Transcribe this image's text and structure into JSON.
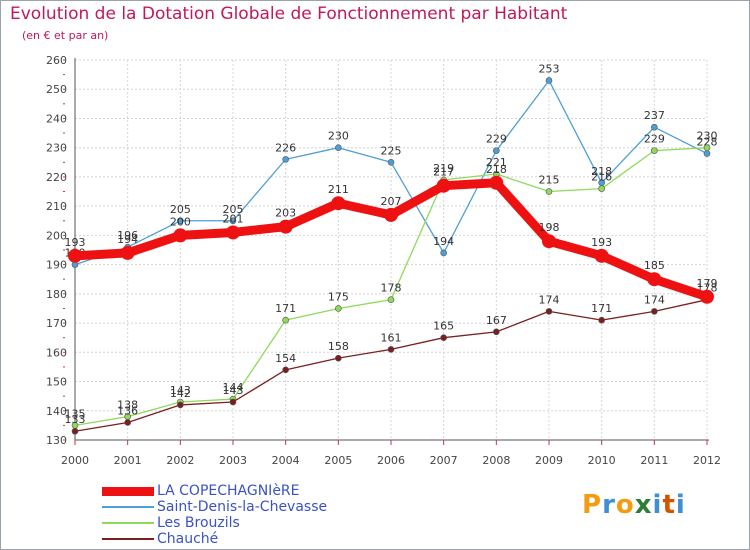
{
  "header": {
    "title": "Evolution de la Dotation Globale de Fonctionnement par Habitant",
    "subtitle": "(en € et par an)"
  },
  "logo": {
    "text": "Proxiti",
    "colors": [
      "#f39c12",
      "#3f8fd6",
      "#f39c12",
      "#2e7d32",
      "#3f8fd6",
      "#d35400",
      "#3f8fd6"
    ]
  },
  "chart_data": {
    "type": "line",
    "title": "Evolution de la Dotation Globale de Fonctionnement par Habitant",
    "subtitle": "(en € et par an)",
    "xlabel": "",
    "ylabel": "",
    "x": [
      "2000",
      "2001",
      "2002",
      "2003",
      "2004",
      "2005",
      "2006",
      "2007",
      "2008",
      "2009",
      "2010",
      "2011",
      "2012"
    ],
    "ylim": [
      130,
      260
    ],
    "yticks": [
      130,
      140,
      150,
      160,
      170,
      180,
      190,
      200,
      210,
      220,
      230,
      240,
      250,
      260
    ],
    "grid": true,
    "legend_position": "bottom",
    "series": [
      {
        "name": "Saint-Denis-la-Chevasse",
        "color": "#4e9fd6",
        "values": [
          190,
          196,
          205,
          205,
          226,
          230,
          225,
          194,
          229,
          253,
          218,
          237,
          228
        ]
      },
      {
        "name": "Les Brouzils",
        "color": "#8fd95b",
        "values": [
          135,
          138,
          143,
          144,
          171,
          175,
          178,
          219,
          221,
          215,
          216,
          229,
          230
        ]
      },
      {
        "name": "Chauché",
        "color": "#7a1f1f",
        "values": [
          133,
          136,
          142,
          143,
          154,
          158,
          161,
          165,
          167,
          174,
          171,
          174,
          178
        ]
      },
      {
        "name": "LA COPECHAGNIèRE",
        "color": "#ee1111",
        "values": [
          193,
          194,
          200,
          201,
          203,
          211,
          207,
          217,
          218,
          198,
          193,
          185,
          179
        ]
      }
    ],
    "legend_order": [
      "LA COPECHAGNIèRE",
      "Saint-Denis-la-Chevasse",
      "Les Brouzils",
      "Chauché"
    ]
  }
}
